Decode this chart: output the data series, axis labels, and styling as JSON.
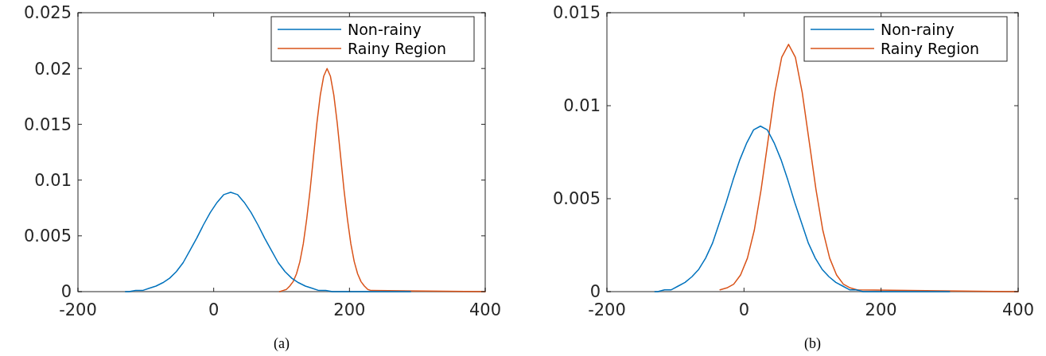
{
  "chart_data": [
    {
      "type": "line",
      "annotations": [
        "(a)"
      ],
      "xlim": [
        -200,
        400
      ],
      "ylim": [
        0,
        0.025
      ],
      "xticks": [
        -200,
        0,
        200,
        400
      ],
      "yticks": [
        0,
        0.005,
        0.01,
        0.015,
        0.02,
        0.025
      ],
      "grid": false,
      "legend": "top right",
      "line_style": "solid",
      "series": [
        {
          "name": "Non-rainy",
          "color": "#0072bd",
          "x": [
            -130,
            -125,
            -115,
            -105,
            -95,
            -85,
            -75,
            -65,
            -55,
            -45,
            -35,
            -25,
            -15,
            -5,
            5,
            15,
            25,
            35,
            45,
            55,
            65,
            75,
            85,
            95,
            105,
            115,
            125,
            135,
            145,
            155,
            165,
            175,
            200,
            250,
            290
          ],
          "values": [
            0,
            0,
            0.0001,
            0.0001,
            0.0003,
            0.0005,
            0.0008,
            0.0012,
            0.0018,
            0.0026,
            0.0037,
            0.0048,
            0.006,
            0.0071,
            0.008,
            0.0087,
            0.0089,
            0.0087,
            0.008,
            0.0071,
            0.006,
            0.0048,
            0.0037,
            0.0026,
            0.0018,
            0.0012,
            0.0008,
            0.0005,
            0.0003,
            0.0001,
            0.0001,
            0,
            0,
            0,
            0
          ]
        },
        {
          "name": "Rainy Region",
          "color": "#d95319",
          "x": [
            97,
            102,
            107,
            112,
            117,
            122,
            127,
            132,
            137,
            142,
            147,
            152,
            157,
            162,
            167,
            172,
            177,
            182,
            187,
            192,
            197,
            202,
            207,
            212,
            217,
            222,
            227,
            232,
            400
          ],
          "values": [
            0,
            0.0001,
            0.0002,
            0.0005,
            0.0009,
            0.0016,
            0.0027,
            0.0043,
            0.0065,
            0.0091,
            0.0121,
            0.0151,
            0.0176,
            0.0193,
            0.02,
            0.0193,
            0.0176,
            0.0151,
            0.0121,
            0.0091,
            0.0065,
            0.0043,
            0.0027,
            0.0016,
            0.0009,
            0.0005,
            0.0002,
            0.0001,
            0
          ]
        }
      ]
    },
    {
      "type": "line",
      "annotations": [
        "(b)"
      ],
      "xlim": [
        -200,
        400
      ],
      "ylim": [
        0,
        0.015
      ],
      "xticks": [
        -200,
        0,
        200,
        400
      ],
      "yticks": [
        0,
        0.005,
        0.01,
        0.015
      ],
      "grid": false,
      "legend": "top right",
      "line_style": "solid",
      "series": [
        {
          "name": "Non-rainy",
          "color": "#0072bd",
          "x": [
            -130,
            -126,
            -116,
            -106,
            -96,
            -86,
            -76,
            -66,
            -56,
            -46,
            -36,
            -26,
            -16,
            -6,
            4,
            14,
            24,
            34,
            44,
            54,
            64,
            74,
            84,
            94,
            104,
            114,
            124,
            134,
            144,
            154,
            164,
            174,
            200,
            250,
            300
          ],
          "values": [
            0,
            0,
            0.0001,
            0.0001,
            0.0003,
            0.0005,
            0.0008,
            0.0012,
            0.0018,
            0.0026,
            0.0037,
            0.0048,
            0.006,
            0.0071,
            0.008,
            0.0087,
            0.0089,
            0.0087,
            0.008,
            0.0071,
            0.006,
            0.0048,
            0.0037,
            0.0026,
            0.0018,
            0.0012,
            0.0008,
            0.0005,
            0.0003,
            0.0001,
            0.0001,
            0,
            0,
            0,
            0
          ]
        },
        {
          "name": "Rainy Region",
          "color": "#d95319",
          "x": [
            -35,
            -25,
            -15,
            -5,
            5,
            15,
            25,
            35,
            45,
            55,
            65,
            75,
            85,
            95,
            105,
            115,
            125,
            135,
            145,
            155,
            165,
            400
          ],
          "values": [
            0.0001,
            0.0002,
            0.0004,
            0.0009,
            0.0018,
            0.0033,
            0.0055,
            0.0081,
            0.0107,
            0.0126,
            0.0133,
            0.0126,
            0.0107,
            0.0081,
            0.0055,
            0.0033,
            0.0018,
            0.0009,
            0.0004,
            0.0002,
            0.0001,
            0
          ]
        }
      ]
    }
  ]
}
